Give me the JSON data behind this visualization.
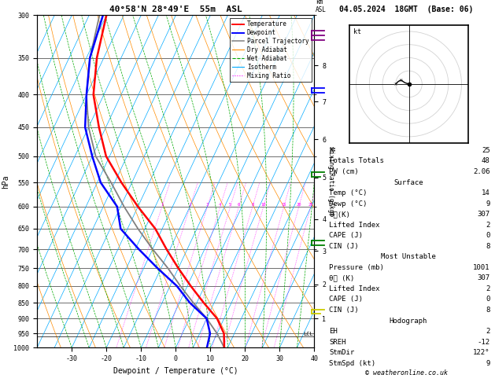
{
  "title_left": "40°58'N 28°49'E  55m  ASL",
  "title_right": "04.05.2024  18GMT  (Base: 06)",
  "xlabel": "Dewpoint / Temperature (°C)",
  "ylabel_left": "hPa",
  "pressure_levels": [
    300,
    350,
    400,
    450,
    500,
    550,
    600,
    650,
    700,
    750,
    800,
    850,
    900,
    950,
    1000
  ],
  "temp_range": [
    -40,
    40
  ],
  "temp_ticks": [
    -30,
    -20,
    -10,
    0,
    10,
    20,
    30,
    40
  ],
  "pressure_min": 300,
  "pressure_max": 1000,
  "temp_color": "#ff0000",
  "dewp_color": "#0000ff",
  "parcel_color": "#808080",
  "dry_adiabat_color": "#ff8c00",
  "wet_adiabat_color": "#00aa00",
  "isotherm_color": "#00aaff",
  "mixing_ratio_color": "#ff00ff",
  "background_color": "#ffffff",
  "skew_factor": 45,
  "temp_profile_T": [
    14,
    12,
    8,
    2,
    -4,
    -10,
    -16,
    -22,
    -30,
    -38,
    -46,
    -52,
    -58,
    -62,
    -65
  ],
  "temp_profile_P": [
    1000,
    950,
    900,
    850,
    800,
    750,
    700,
    650,
    600,
    550,
    500,
    450,
    400,
    350,
    300
  ],
  "dewp_profile_T": [
    9,
    8,
    5,
    -2,
    -8,
    -16,
    -24,
    -32,
    -36,
    -44,
    -50,
    -56,
    -60,
    -64,
    -66
  ],
  "dewp_profile_P": [
    1000,
    950,
    900,
    850,
    800,
    750,
    700,
    650,
    600,
    550,
    500,
    450,
    400,
    350,
    300
  ],
  "parcel_profile_T": [
    14,
    10,
    5,
    -1,
    -7,
    -13,
    -20,
    -27,
    -34,
    -41,
    -49,
    -55,
    -60,
    -64,
    -67
  ],
  "parcel_profile_P": [
    1000,
    950,
    900,
    850,
    800,
    750,
    700,
    650,
    600,
    550,
    500,
    450,
    400,
    350,
    300
  ],
  "mixing_ratio_values": [
    1,
    2,
    3,
    4,
    5,
    6,
    8,
    10,
    15,
    20,
    25
  ],
  "km_ticks": [
    1,
    2,
    3,
    4,
    5,
    6,
    7,
    8
  ],
  "km_pressures": [
    900,
    795,
    705,
    628,
    540,
    470,
    410,
    360
  ],
  "lcl_pressure": 960,
  "stats": {
    "K": 25,
    "Totals_Totals": 48,
    "PW_cm": 2.06,
    "Surface_Temp": 14,
    "Surface_Dewp": 9,
    "Surface_theta_e": 307,
    "Surface_LI": 2,
    "Surface_CAPE": 0,
    "Surface_CIN": 8,
    "MU_Pressure": 1001,
    "MU_theta_e": 307,
    "MU_LI": 2,
    "MU_CAPE": 0,
    "MU_CIN": 8,
    "Hodo_EH": 2,
    "Hodo_SREH": -12,
    "Hodo_StmDir": 122,
    "Hodo_StmSpd": 9
  },
  "copyright": "© weatheronline.co.uk"
}
